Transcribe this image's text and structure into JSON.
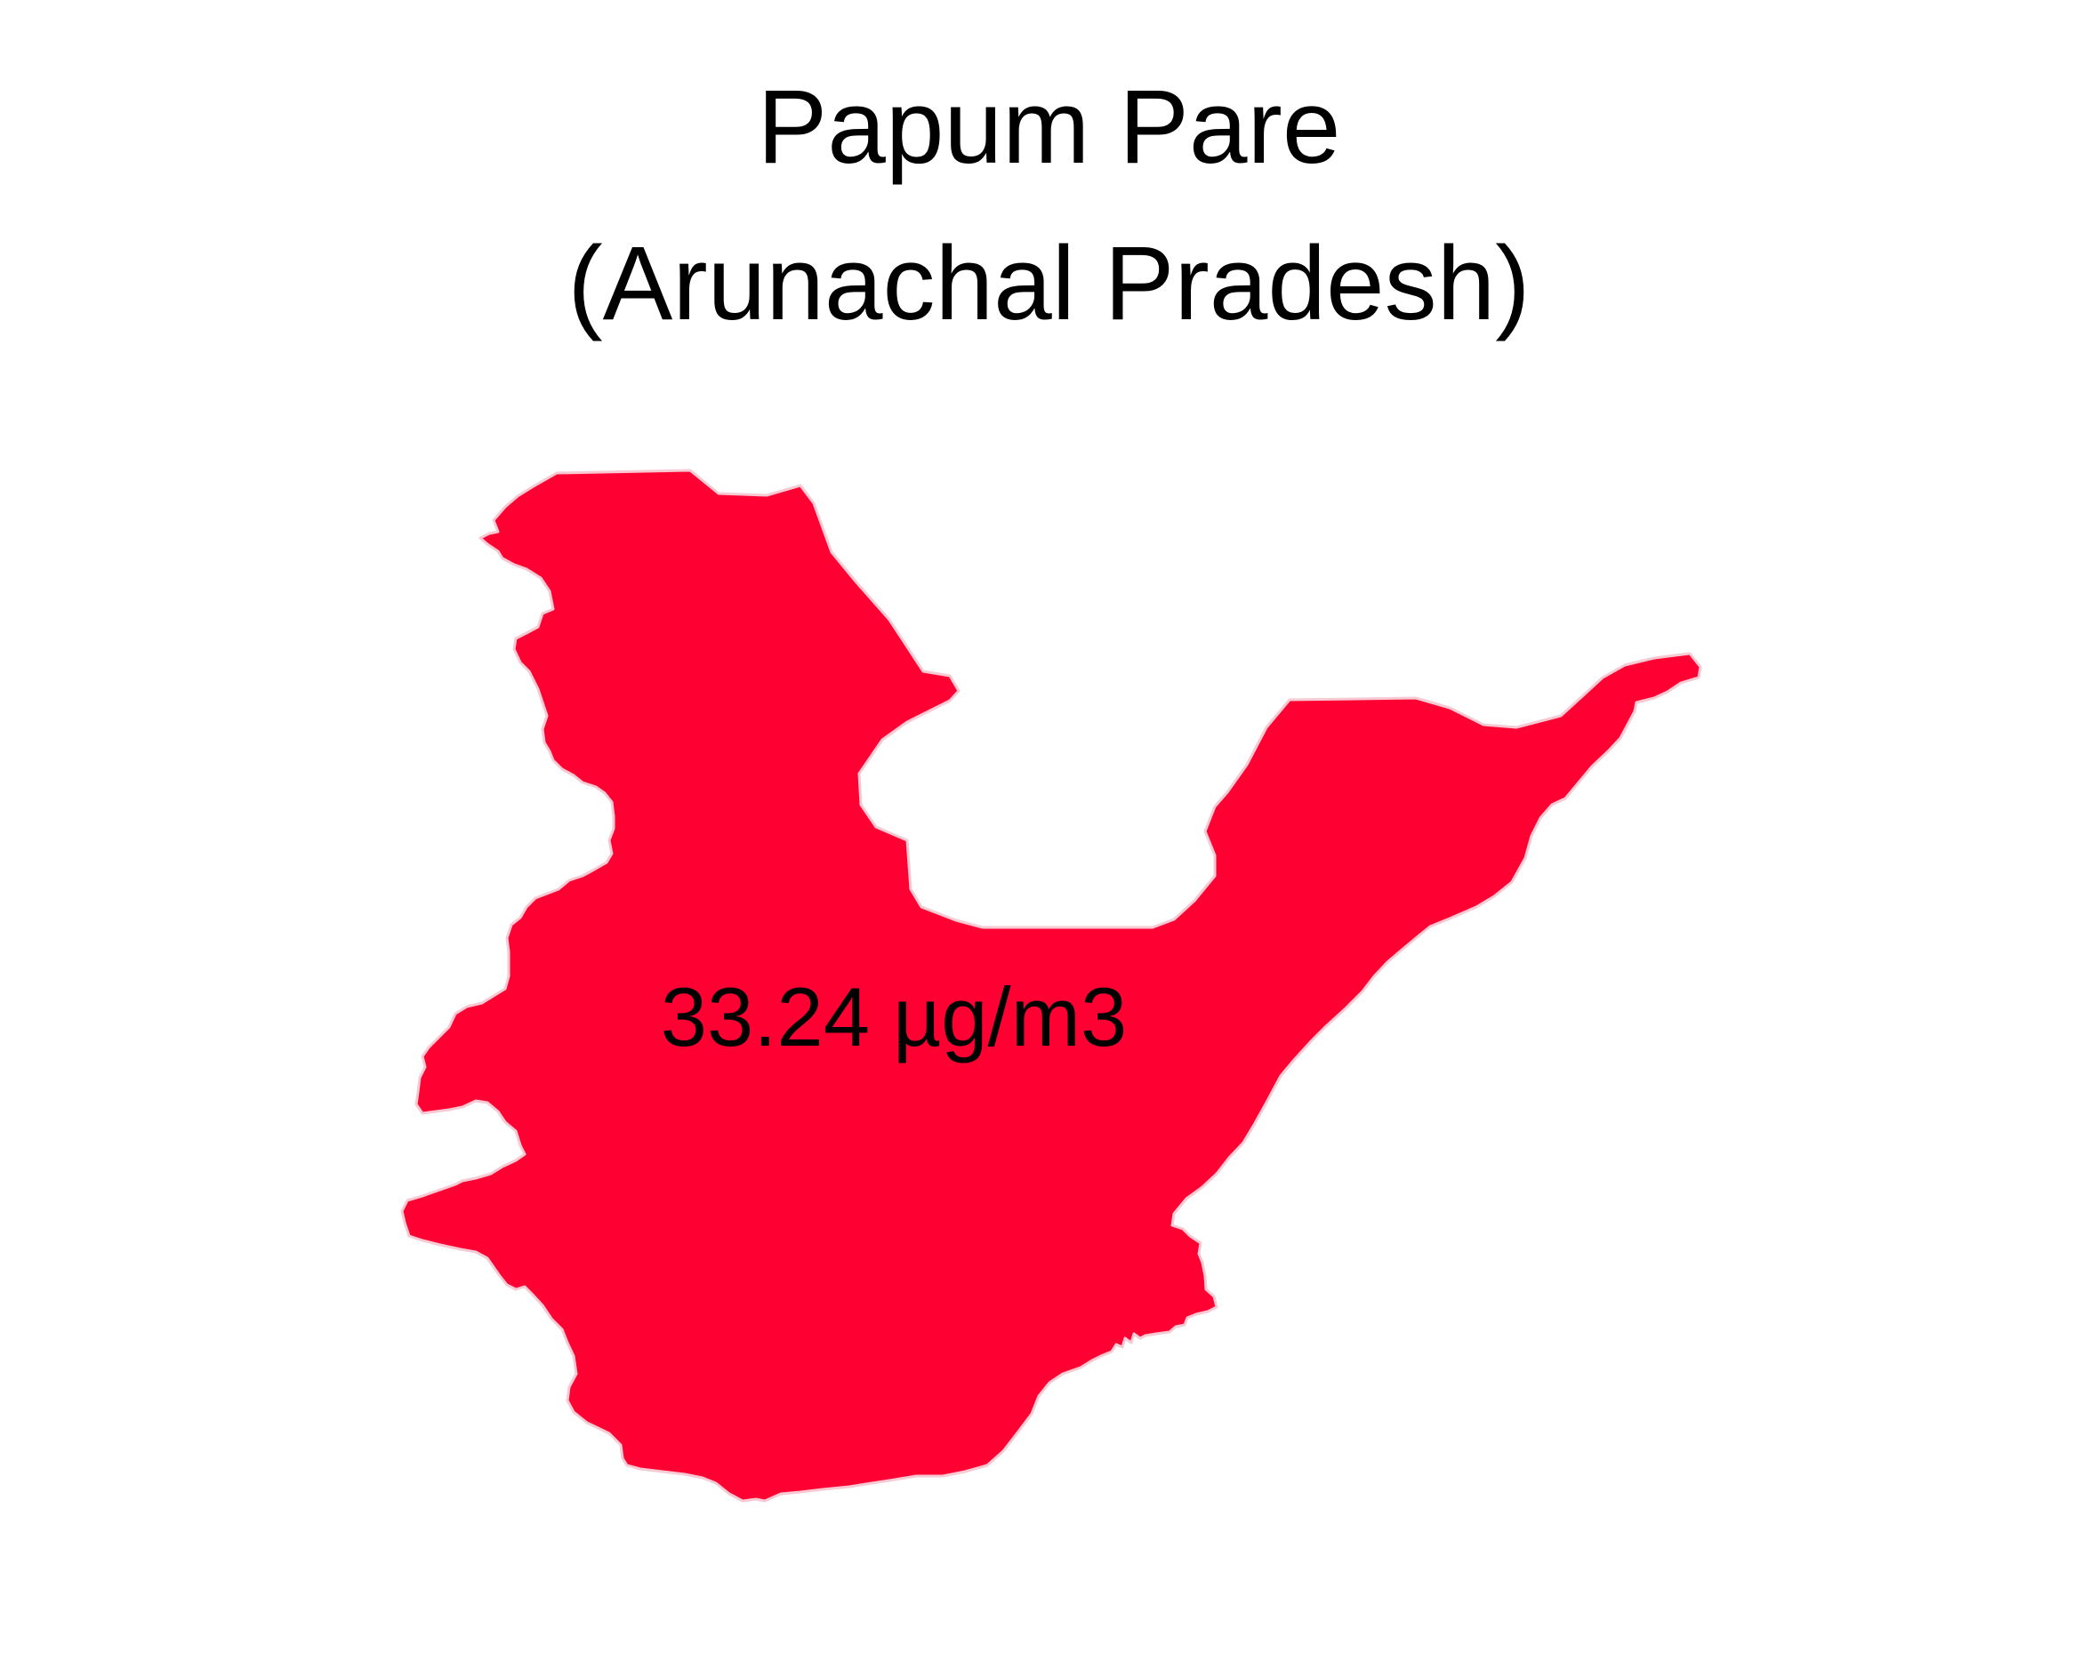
{
  "map": {
    "title": "Papum Pare",
    "subtitle": "(Arunachal Pradesh)",
    "district": {
      "name": "Papum Pare",
      "value_label": "33.24 µg/m3",
      "fill_color": "#ff0033",
      "border_color": "#f6c9d3"
    },
    "background_color": "#ffffff"
  }
}
